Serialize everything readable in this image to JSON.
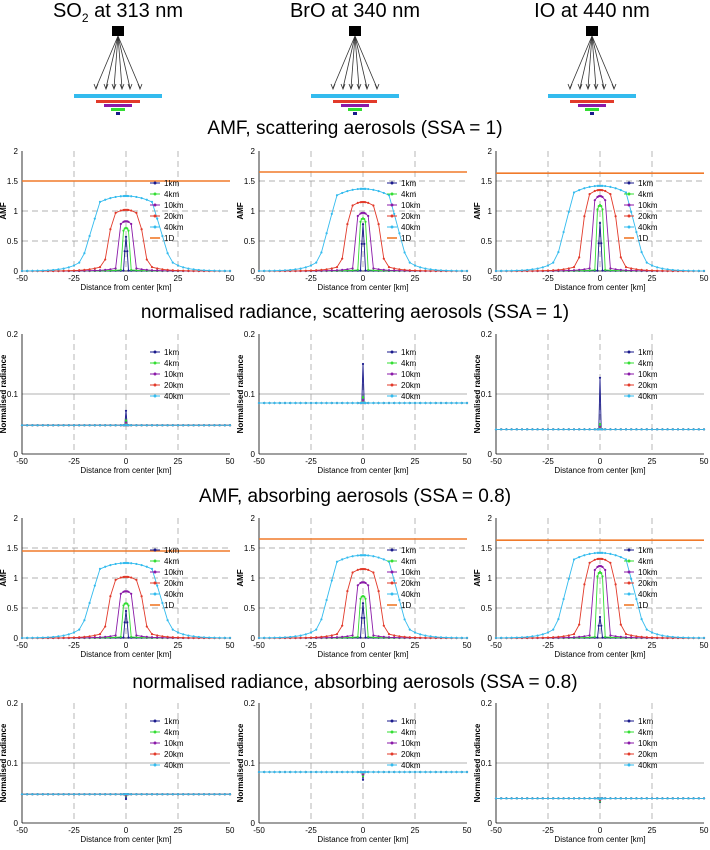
{
  "columns": [
    {
      "pre": "SO",
      "sub": "2",
      "post": " at 313 nm"
    },
    {
      "pre": "BrO",
      "sub": "",
      "post": " at 340 nm"
    },
    {
      "pre": "IO",
      "sub": "",
      "post": " at 440 nm"
    }
  ],
  "row_titles": [
    "AMF, scattering aerosols (SSA = 1)",
    "normalised radiance, scattering aerosols (SSA = 1)",
    "AMF, absorbing aerosols (SSA = 0.8)",
    "normalised radiance, absorbing aerosols (SSA = 0.8)"
  ],
  "colors": {
    "1km": "#1a1a8c",
    "4km": "#33dd33",
    "10km": "#8a1aa8",
    "20km": "#e23a2a",
    "40km": "#33bbee",
    "1D": "#f07a2a"
  },
  "chart_data": [
    {
      "type": "line",
      "kind": "amf",
      "row": 0,
      "col": 0,
      "xlabel": "Distance from center [km]",
      "ylabel": "AMF",
      "xlim": [
        -50,
        50
      ],
      "ylim": [
        0,
        2
      ],
      "xticks": [
        "-50",
        "-25",
        "0",
        "25",
        "50"
      ],
      "yticks": [
        "0",
        "0.5",
        "1",
        "1.5",
        "2"
      ],
      "legend": [
        "1km",
        "4km",
        "10km",
        "20km",
        "40km",
        "1D"
      ],
      "oneD": 1.5,
      "series": [
        {
          "name": "1km",
          "w": 0.8,
          "peak": 0.57
        },
        {
          "name": "4km",
          "w": 2.2,
          "peak": 0.72
        },
        {
          "name": "10km",
          "w": 5,
          "peak": 0.83
        },
        {
          "name": "20km",
          "w": 10.5,
          "peak": 1.02
        },
        {
          "name": "40km",
          "w": 21,
          "peak": 1.25
        }
      ]
    },
    {
      "type": "line",
      "kind": "amf",
      "row": 0,
      "col": 1,
      "xlabel": "Distance from center [km]",
      "ylabel": "AMF",
      "xlim": [
        -50,
        50
      ],
      "ylim": [
        0,
        2
      ],
      "xticks": [
        "-50",
        "-25",
        "0",
        "25",
        "50"
      ],
      "yticks": [
        "0",
        "0.5",
        "1",
        "1.5",
        "2"
      ],
      "legend": [
        "1km",
        "4km",
        "10km",
        "20km",
        "40km",
        "1D"
      ],
      "oneD": 1.65,
      "series": [
        {
          "name": "1km",
          "w": 0.8,
          "peak": 0.78
        },
        {
          "name": "4km",
          "w": 2.2,
          "peak": 0.88
        },
        {
          "name": "10km",
          "w": 5,
          "peak": 0.97
        },
        {
          "name": "20km",
          "w": 10.5,
          "peak": 1.15
        },
        {
          "name": "40km",
          "w": 21,
          "peak": 1.37
        }
      ]
    },
    {
      "type": "line",
      "kind": "amf",
      "row": 0,
      "col": 2,
      "xlabel": "Distance from center [km]",
      "ylabel": "AMF",
      "xlim": [
        -50,
        50
      ],
      "ylim": [
        0,
        2
      ],
      "xticks": [
        "-50",
        "-25",
        "0",
        "25",
        "50"
      ],
      "yticks": [
        "0",
        "0.5",
        "1",
        "1.5",
        "2"
      ],
      "legend": [
        "1km",
        "4km",
        "10km",
        "20km",
        "40km",
        "1D"
      ],
      "oneD": 1.63,
      "series": [
        {
          "name": "1km",
          "w": 0.8,
          "peak": 0.8
        },
        {
          "name": "4km",
          "w": 2.2,
          "peak": 1.1
        },
        {
          "name": "10km",
          "w": 5,
          "peak": 1.25
        },
        {
          "name": "20km",
          "w": 10.5,
          "peak": 1.35
        },
        {
          "name": "40km",
          "w": 21,
          "peak": 1.42
        }
      ]
    },
    {
      "type": "line",
      "kind": "rad",
      "row": 1,
      "col": 0,
      "xlabel": "Distance from center [km]",
      "ylabel": "Normalised radiance",
      "xlim": [
        -50,
        50
      ],
      "ylim": [
        0,
        0.2
      ],
      "xticks": [
        "-50",
        "-25",
        "0",
        "25",
        "50"
      ],
      "yticks": [
        "0",
        "0.1",
        "0.2"
      ],
      "legend": [
        "1km",
        "4km",
        "10km",
        "20km",
        "40km"
      ],
      "base": 0.048,
      "series": [
        {
          "name": "1km",
          "peak": 0.072
        },
        {
          "name": "4km",
          "peak": 0.056
        },
        {
          "name": "10km",
          "peak": 0.052
        },
        {
          "name": "20km",
          "peak": 0.05
        },
        {
          "name": "40km",
          "peak": 0.049
        }
      ]
    },
    {
      "type": "line",
      "kind": "rad",
      "row": 1,
      "col": 1,
      "xlabel": "Distance from center [km]",
      "ylabel": "Normalised radiance",
      "xlim": [
        -50,
        50
      ],
      "ylim": [
        0,
        0.2
      ],
      "xticks": [
        "-50",
        "-25",
        "0",
        "25",
        "50"
      ],
      "yticks": [
        "0",
        "0.1",
        "0.2"
      ],
      "legend": [
        "1km",
        "4km",
        "10km",
        "20km",
        "40km"
      ],
      "base": 0.085,
      "series": [
        {
          "name": "1km",
          "peak": 0.15
        },
        {
          "name": "4km",
          "peak": 0.095
        },
        {
          "name": "10km",
          "peak": 0.09
        },
        {
          "name": "20km",
          "peak": 0.087
        },
        {
          "name": "40km",
          "peak": 0.086
        }
      ]
    },
    {
      "type": "line",
      "kind": "rad",
      "row": 1,
      "col": 2,
      "xlabel": "Distance from center [km]",
      "ylabel": "Normalised radiance",
      "xlim": [
        -50,
        50
      ],
      "ylim": [
        0,
        0.2
      ],
      "xticks": [
        "-50",
        "-25",
        "0",
        "25",
        "50"
      ],
      "yticks": [
        "0",
        "0.1",
        "0.2"
      ],
      "legend": [
        "1km",
        "4km",
        "10km",
        "20km",
        "40km"
      ],
      "base": 0.041,
      "series": [
        {
          "name": "1km",
          "peak": 0.127
        },
        {
          "name": "4km",
          "peak": 0.05
        },
        {
          "name": "10km",
          "peak": 0.045
        },
        {
          "name": "20km",
          "peak": 0.043
        },
        {
          "name": "40km",
          "peak": 0.042
        }
      ]
    },
    {
      "type": "line",
      "kind": "amf",
      "row": 2,
      "col": 0,
      "xlabel": "Distance from center [km]",
      "ylabel": "AMF",
      "xlim": [
        -50,
        50
      ],
      "ylim": [
        0,
        2
      ],
      "xticks": [
        "-50",
        "-25",
        "0",
        "25",
        "50"
      ],
      "yticks": [
        "0",
        "0.5",
        "1",
        "1.5",
        "2"
      ],
      "legend": [
        "1km",
        "4km",
        "10km",
        "20km",
        "40km",
        "1D"
      ],
      "oneD": 1.45,
      "series": [
        {
          "name": "1km",
          "w": 0.8,
          "peak": 0.45
        },
        {
          "name": "4km",
          "w": 2.2,
          "peak": 0.58
        },
        {
          "name": "10km",
          "w": 5,
          "peak": 0.78
        },
        {
          "name": "20km",
          "w": 10.5,
          "peak": 1.02
        },
        {
          "name": "40km",
          "w": 21,
          "peak": 1.25
        }
      ]
    },
    {
      "type": "line",
      "kind": "amf",
      "row": 2,
      "col": 1,
      "xlabel": "Distance from center [km]",
      "ylabel": "AMF",
      "xlim": [
        -50,
        50
      ],
      "ylim": [
        0,
        2
      ],
      "xticks": [
        "-50",
        "-25",
        "0",
        "25",
        "50"
      ],
      "yticks": [
        "0",
        "0.5",
        "1",
        "1.5",
        "2"
      ],
      "legend": [
        "1km",
        "4km",
        "10km",
        "20km",
        "40km",
        "1D"
      ],
      "oneD": 1.65,
      "series": [
        {
          "name": "1km",
          "w": 0.8,
          "peak": 0.58
        },
        {
          "name": "4km",
          "w": 2.2,
          "peak": 0.7
        },
        {
          "name": "10km",
          "w": 5,
          "peak": 0.93
        },
        {
          "name": "20km",
          "w": 10.5,
          "peak": 1.15
        },
        {
          "name": "40km",
          "w": 21,
          "peak": 1.38
        }
      ]
    },
    {
      "type": "line",
      "kind": "amf",
      "row": 2,
      "col": 2,
      "xlabel": "Distance from center [km]",
      "ylabel": "AMF",
      "xlim": [
        -50,
        50
      ],
      "ylim": [
        0,
        2
      ],
      "xticks": [
        "-50",
        "-25",
        "0",
        "25",
        "50"
      ],
      "yticks": [
        "0",
        "0.5",
        "1",
        "1.5",
        "2"
      ],
      "legend": [
        "1km",
        "4km",
        "10km",
        "20km",
        "40km",
        "1D"
      ],
      "oneD": 1.63,
      "series": [
        {
          "name": "1km",
          "w": 0.8,
          "peak": 0.35
        },
        {
          "name": "4km",
          "w": 2.2,
          "peak": 1.1
        },
        {
          "name": "10km",
          "w": 5,
          "peak": 1.2
        },
        {
          "name": "20km",
          "w": 10.5,
          "peak": 1.32
        },
        {
          "name": "40km",
          "w": 21,
          "peak": 1.42
        }
      ]
    },
    {
      "type": "line",
      "kind": "rad",
      "row": 3,
      "col": 0,
      "xlabel": "Distance from center [km]",
      "ylabel": "Normalised radiance",
      "xlim": [
        -50,
        50
      ],
      "ylim": [
        0,
        0.2
      ],
      "xticks": [
        "-50",
        "-25",
        "0",
        "25",
        "50"
      ],
      "yticks": [
        "0",
        "0.1",
        "0.2"
      ],
      "legend": [
        "1km",
        "4km",
        "10km",
        "20km",
        "40km"
      ],
      "base": 0.048,
      "series": [
        {
          "name": "1km",
          "peak": 0.04
        },
        {
          "name": "4km",
          "peak": 0.045
        },
        {
          "name": "10km",
          "peak": 0.046
        },
        {
          "name": "20km",
          "peak": 0.047
        },
        {
          "name": "40km",
          "peak": 0.048
        }
      ]
    },
    {
      "type": "line",
      "kind": "rad",
      "row": 3,
      "col": 1,
      "xlabel": "Distance from center [km]",
      "ylabel": "Normalised radiance",
      "xlim": [
        -50,
        50
      ],
      "ylim": [
        0,
        0.2
      ],
      "xticks": [
        "-50",
        "-25",
        "0",
        "25",
        "50"
      ],
      "yticks": [
        "0",
        "0.1",
        "0.2"
      ],
      "legend": [
        "1km",
        "4km",
        "10km",
        "20km",
        "40km"
      ],
      "base": 0.085,
      "series": [
        {
          "name": "1km",
          "peak": 0.072
        },
        {
          "name": "4km",
          "peak": 0.078
        },
        {
          "name": "10km",
          "peak": 0.081
        },
        {
          "name": "20km",
          "peak": 0.083
        },
        {
          "name": "40km",
          "peak": 0.084
        }
      ]
    },
    {
      "type": "line",
      "kind": "rad",
      "row": 3,
      "col": 2,
      "xlabel": "Distance from center [km]",
      "ylabel": "Normalised radiance",
      "xlim": [
        -50,
        50
      ],
      "ylim": [
        0,
        0.2
      ],
      "xticks": [
        "-50",
        "-25",
        "0",
        "25",
        "50"
      ],
      "yticks": [
        "0",
        "0.1",
        "0.2"
      ],
      "legend": [
        "1km",
        "4km",
        "10km",
        "20km",
        "40km"
      ],
      "base": 0.041,
      "series": [
        {
          "name": "1km",
          "peak": 0.035
        },
        {
          "name": "4km",
          "peak": 0.036
        },
        {
          "name": "10km",
          "peak": 0.038
        },
        {
          "name": "20km",
          "peak": 0.039
        },
        {
          "name": "40km",
          "peak": 0.04
        }
      ]
    }
  ]
}
